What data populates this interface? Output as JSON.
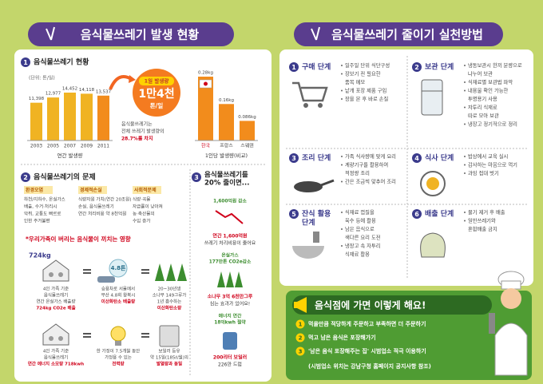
{
  "left": {
    "title": "음식물쓰레기 발생 현황",
    "status": {
      "number": "1",
      "heading": "음식물쓰레기 현황",
      "unit": "(단위: 톤/일)",
      "annual": {
        "type": "bar",
        "categories": [
          "2003",
          "2005",
          "2007",
          "2009",
          "2011"
        ],
        "values": [
          11398,
          12977,
          14452,
          14118,
          13537
        ],
        "value_labels": [
          "11,398",
          "12,977",
          "14,452",
          "14,118",
          "13,537"
        ],
        "colors": [
          "#f0b323",
          "#f0b323",
          "#f0b323",
          "#f0b323",
          "#f28c1c"
        ],
        "caption": "연간 발생량"
      },
      "daily": {
        "label": "1일 발생량",
        "amount": "1만4천",
        "unit": "톤/일"
      },
      "share": [
        "음식물쓰레기는",
        "전체 쓰레기 발생량의",
        "28.7%를 차지"
      ],
      "per_capita": {
        "type": "bar",
        "categories": [
          "한국",
          "프랑스",
          "스웨덴"
        ],
        "values": [
          0.28,
          0.16,
          0.086
        ],
        "value_labels": [
          "0.28kg",
          "0.16kg",
          "0.086kg"
        ],
        "color": "#f28c1c",
        "caption": "1인당 발생량(비교)"
      }
    },
    "problems": {
      "number": "2",
      "heading": "음식물쓰레기의 문제",
      "items": [
        {
          "tag": "환경오염",
          "lines": [
            "하천/지하수, 온실가스",
            "배출, 수거·처리시",
            "악취, 교통도 빠르로",
            "인한 주거불편"
          ]
        },
        {
          "tag": "경제적손실",
          "lines": [
            "식량자원 가치(연간 20조원)",
            "손실, 음식물쓰레기",
            "연간 처리비용 약 8천억원"
          ]
        },
        {
          "tag": "사회적문제",
          "lines": [
            "식량·곡물",
            "자급률이 낮아져",
            "농·축산물의",
            "수입 증가"
          ]
        }
      ],
      "impact_title": "*우리가족이 버리는 음식물이 끼치는 영향",
      "impact": [
        {
          "amount": "724kg",
          "lines": [
            "4인 가족 기준",
            "음식물쓰레기",
            "연간 온실가스 배출량"
          ],
          "highlight": "724kg CO2e 배출"
        },
        {
          "amount": "4.8톤",
          "lines": [
            "승용차로 서울에서",
            "부산 4.8회 왕복시"
          ],
          "highlight": "이산화탄소 배출량"
        },
        {
          "lines": [
            "20~30년생",
            "소나무 149그루가",
            "1년 흡수하는"
          ],
          "highlight": "이산화탄소량"
        },
        {
          "lines": [
            "4인 가족 기준",
            "음식물쓰레기"
          ],
          "highlight": "연간 에너지 소모량 718kwh"
        },
        {
          "lines": [
            "한 가정이 7.5개월 동안",
            "가정용 수 있는"
          ],
          "highlight": "전력량"
        },
        {
          "lines": [
            "보일러 등유",
            "약 15일(185ℓ/월)의"
          ],
          "highlight": "발열량과 동일"
        }
      ]
    },
    "reduction": {
      "number": "3",
      "heading": [
        "음식물쓰레기를",
        "20% 줄이면..."
      ],
      "items": [
        {
          "label": [
            "1,600억원 감소"
          ],
          "lines": [
            "연간 1,600억원",
            "쓰레기 처리비용이 줄어요"
          ]
        },
        {
          "label": [
            "온실가스",
            "177만톤 CO2e감소"
          ],
          "lines": [
            "소나무 3억 6천만그루",
            "심는 효과가 있어요!"
          ]
        },
        {
          "label": [
            "에너지 연간",
            "18억kwh 절약"
          ],
          "lines": [
            "200리터 보일러",
            "226만 드럼"
          ]
        }
      ]
    }
  },
  "right": {
    "title": "음식물쓰레기 줄이기 실천방법",
    "steps": [
      {
        "number": "1",
        "title": [
          "구매 단계"
        ],
        "tips": [
          [
            "일주일 단위 식단구성"
          ],
          [
            "장보기 전 필요한",
            "품목 메모"
          ],
          [
            "낱개 포장 제품 구입"
          ],
          [
            "장을 본 후 바로 손질"
          ]
        ]
      },
      {
        "number": "2",
        "title": [
          "보관 단계"
        ],
        "tips": [
          [
            "냉동보관시 한끼 분량으로",
            "나누어 보관"
          ],
          [
            "식재료별 보관법 파악"
          ],
          [
            "내용물 확인 가능한",
            "투명용기 사용"
          ],
          [
            "자투리 식재료",
            "따로 모아 보관"
          ],
          [
            "냉장고 정기적으로 정리"
          ]
        ]
      },
      {
        "number": "3",
        "title": [
          "조리 단계"
        ],
        "tips": [
          [
            "가족 식사량에 맞게 요리"
          ],
          [
            "계량기구를 활용하여",
            "적정량 조리"
          ],
          [
            "간은 조금씩 맞추어 조리"
          ]
        ]
      },
      {
        "number": "4",
        "title": [
          "식사 단계"
        ],
        "tips": [
          [
            "밥상에서 교육 실시"
          ],
          [
            "감사하는 마음으로 먹기"
          ],
          [
            "과잉 접대 벗기"
          ]
        ]
      },
      {
        "number": "5",
        "title": [
          "잔식 활용",
          "단계"
        ],
        "tips": [
          [
            "식재료 껍질을",
            "육수 등에 활용"
          ],
          [
            "남은 음식으로",
            "색다른 요리 도전"
          ],
          [
            "냉장고 속 자투리",
            "식재료 활용"
          ]
        ]
      },
      {
        "number": "6",
        "title": [
          "배출 단계"
        ],
        "tips": [
          [
            "물기 제거 후 배출"
          ],
          [
            "일반쓰레기와",
            "혼합배출 금지"
          ]
        ]
      }
    ],
    "restaurant": {
      "title": "음식점에 가면 이렇게 해요!",
      "items": [
        {
          "number": "1",
          "text": "먹을만큼 적당하게 주문하고 부족하면 더 주문하기"
        },
        {
          "number": "2",
          "text": "먹고 남은 음식은 포장해가기"
        },
        {
          "number": "3",
          "text": "'남은 음식 포장해주는 집' 시범업소 적극 이용하기"
        }
      ],
      "note": "(시범업소 위치는 강남구청 홈페이지 공지사항 참조)"
    }
  }
}
